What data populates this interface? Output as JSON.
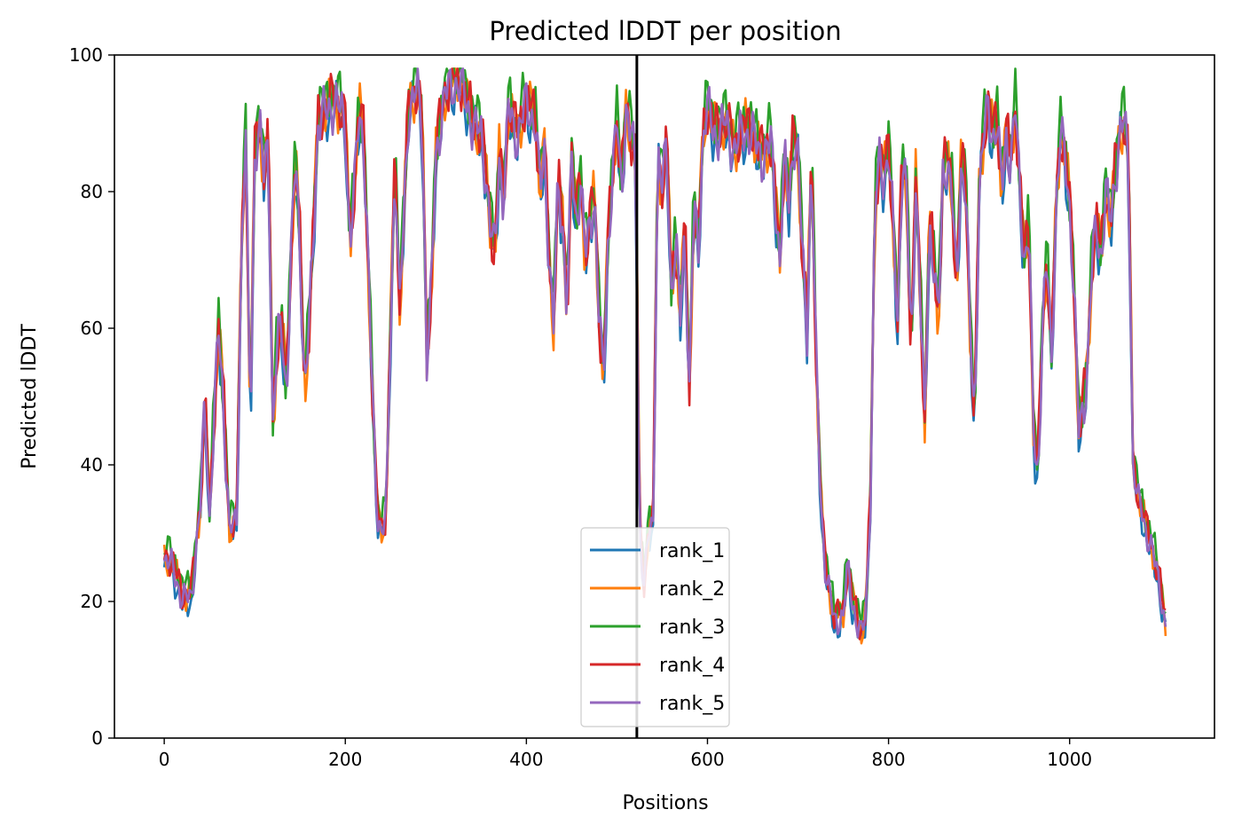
{
  "chart_data": {
    "type": "line",
    "title": "Predicted lDDT per position",
    "xlabel": "Positions",
    "ylabel": "Predicted lDDT",
    "xlim": [
      -55,
      1160
    ],
    "ylim": [
      0,
      100
    ],
    "xticks": [
      0,
      200,
      400,
      600,
      800,
      1000
    ],
    "yticks": [
      0,
      20,
      40,
      60,
      80,
      100
    ],
    "grid": false,
    "legend": "lower center",
    "vline": {
      "x": 522,
      "color": "#000000"
    },
    "series": [
      {
        "name": "rank_1",
        "color": "#1f77b4",
        "offset": -1.0
      },
      {
        "name": "rank_2",
        "color": "#ff7f0e",
        "offset": 0.5
      },
      {
        "name": "rank_3",
        "color": "#2ca02c",
        "offset": 2.0
      },
      {
        "name": "rank_4",
        "color": "#d62728",
        "offset": 0.8
      },
      {
        "name": "rank_5",
        "color": "#9467bd",
        "offset": 0.0
      }
    ],
    "profile": [
      [
        0,
        26
      ],
      [
        10,
        25
      ],
      [
        20,
        20
      ],
      [
        30,
        21
      ],
      [
        40,
        34
      ],
      [
        45,
        50
      ],
      [
        50,
        32
      ],
      [
        60,
        60
      ],
      [
        65,
        50
      ],
      [
        72,
        30
      ],
      [
        80,
        32
      ],
      [
        85,
        70
      ],
      [
        90,
        88
      ],
      [
        95,
        45
      ],
      [
        100,
        85
      ],
      [
        105,
        90
      ],
      [
        110,
        82
      ],
      [
        115,
        88
      ],
      [
        120,
        45
      ],
      [
        125,
        58
      ],
      [
        130,
        60
      ],
      [
        135,
        50
      ],
      [
        140,
        70
      ],
      [
        145,
        85
      ],
      [
        150,
        72
      ],
      [
        155,
        50
      ],
      [
        160,
        60
      ],
      [
        170,
        90
      ],
      [
        180,
        92
      ],
      [
        190,
        93
      ],
      [
        200,
        90
      ],
      [
        205,
        72
      ],
      [
        210,
        80
      ],
      [
        215,
        92
      ],
      [
        220,
        88
      ],
      [
        225,
        70
      ],
      [
        230,
        50
      ],
      [
        235,
        33
      ],
      [
        240,
        30
      ],
      [
        245,
        32
      ],
      [
        250,
        60
      ],
      [
        255,
        85
      ],
      [
        260,
        62
      ],
      [
        265,
        78
      ],
      [
        270,
        92
      ],
      [
        280,
        95
      ],
      [
        285,
        90
      ],
      [
        290,
        55
      ],
      [
        295,
        65
      ],
      [
        300,
        85
      ],
      [
        305,
        90
      ],
      [
        310,
        94
      ],
      [
        320,
        96
      ],
      [
        330,
        95
      ],
      [
        340,
        90
      ],
      [
        350,
        88
      ],
      [
        355,
        83
      ],
      [
        360,
        75
      ],
      [
        365,
        70
      ],
      [
        370,
        85
      ],
      [
        375,
        78
      ],
      [
        380,
        92
      ],
      [
        390,
        88
      ],
      [
        400,
        93
      ],
      [
        410,
        90
      ],
      [
        415,
        80
      ],
      [
        420,
        86
      ],
      [
        425,
        70
      ],
      [
        430,
        60
      ],
      [
        435,
        82
      ],
      [
        440,
        75
      ],
      [
        445,
        62
      ],
      [
        450,
        85
      ],
      [
        455,
        75
      ],
      [
        460,
        82
      ],
      [
        465,
        70
      ],
      [
        470,
        75
      ],
      [
        475,
        80
      ],
      [
        480,
        62
      ],
      [
        485,
        52
      ],
      [
        490,
        72
      ],
      [
        495,
        82
      ],
      [
        500,
        90
      ],
      [
        505,
        80
      ],
      [
        510,
        92
      ],
      [
        515,
        88
      ],
      [
        520,
        85
      ],
      [
        522,
        70
      ],
      [
        525,
        30
      ],
      [
        530,
        22
      ],
      [
        535,
        30
      ],
      [
        540,
        32
      ],
      [
        545,
        85
      ],
      [
        550,
        80
      ],
      [
        555,
        88
      ],
      [
        560,
        65
      ],
      [
        565,
        72
      ],
      [
        570,
        62
      ],
      [
        575,
        75
      ],
      [
        580,
        50
      ],
      [
        585,
        78
      ],
      [
        590,
        72
      ],
      [
        595,
        88
      ],
      [
        600,
        92
      ],
      [
        610,
        88
      ],
      [
        620,
        90
      ],
      [
        630,
        86
      ],
      [
        640,
        89
      ],
      [
        650,
        88
      ],
      [
        660,
        85
      ],
      [
        670,
        87
      ],
      [
        680,
        70
      ],
      [
        685,
        85
      ],
      [
        690,
        78
      ],
      [
        695,
        88
      ],
      [
        700,
        85
      ],
      [
        705,
        70
      ],
      [
        710,
        60
      ],
      [
        715,
        85
      ],
      [
        720,
        55
      ],
      [
        725,
        35
      ],
      [
        730,
        25
      ],
      [
        740,
        17
      ],
      [
        750,
        18
      ],
      [
        755,
        25
      ],
      [
        760,
        20
      ],
      [
        765,
        17
      ],
      [
        770,
        15
      ],
      [
        775,
        18
      ],
      [
        780,
        35
      ],
      [
        785,
        78
      ],
      [
        790,
        84
      ],
      [
        795,
        82
      ],
      [
        800,
        86
      ],
      [
        805,
        75
      ],
      [
        810,
        60
      ],
      [
        815,
        85
      ],
      [
        820,
        80
      ],
      [
        825,
        55
      ],
      [
        830,
        82
      ],
      [
        835,
        65
      ],
      [
        840,
        45
      ],
      [
        845,
        75
      ],
      [
        850,
        70
      ],
      [
        855,
        60
      ],
      [
        860,
        82
      ],
      [
        865,
        85
      ],
      [
        870,
        80
      ],
      [
        875,
        65
      ],
      [
        880,
        83
      ],
      [
        885,
        82
      ],
      [
        890,
        60
      ],
      [
        895,
        45
      ],
      [
        900,
        80
      ],
      [
        905,
        88
      ],
      [
        910,
        92
      ],
      [
        915,
        88
      ],
      [
        920,
        90
      ],
      [
        925,
        80
      ],
      [
        930,
        88
      ],
      [
        935,
        84
      ],
      [
        940,
        92
      ],
      [
        945,
        80
      ],
      [
        950,
        70
      ],
      [
        955,
        75
      ],
      [
        960,
        45
      ],
      [
        965,
        38
      ],
      [
        970,
        60
      ],
      [
        975,
        70
      ],
      [
        980,
        55
      ],
      [
        985,
        78
      ],
      [
        990,
        88
      ],
      [
        995,
        85
      ],
      [
        1000,
        78
      ],
      [
        1005,
        65
      ],
      [
        1010,
        45
      ],
      [
        1015,
        48
      ],
      [
        1020,
        55
      ],
      [
        1025,
        70
      ],
      [
        1030,
        75
      ],
      [
        1035,
        70
      ],
      [
        1040,
        80
      ],
      [
        1045,
        75
      ],
      [
        1050,
        82
      ],
      [
        1055,
        88
      ],
      [
        1060,
        90
      ],
      [
        1065,
        85
      ],
      [
        1070,
        40
      ],
      [
        1075,
        35
      ],
      [
        1080,
        33
      ],
      [
        1085,
        30
      ],
      [
        1090,
        28
      ],
      [
        1095,
        25
      ],
      [
        1100,
        22
      ],
      [
        1105,
        17
      ],
      [
        1107,
        16
      ]
    ]
  }
}
